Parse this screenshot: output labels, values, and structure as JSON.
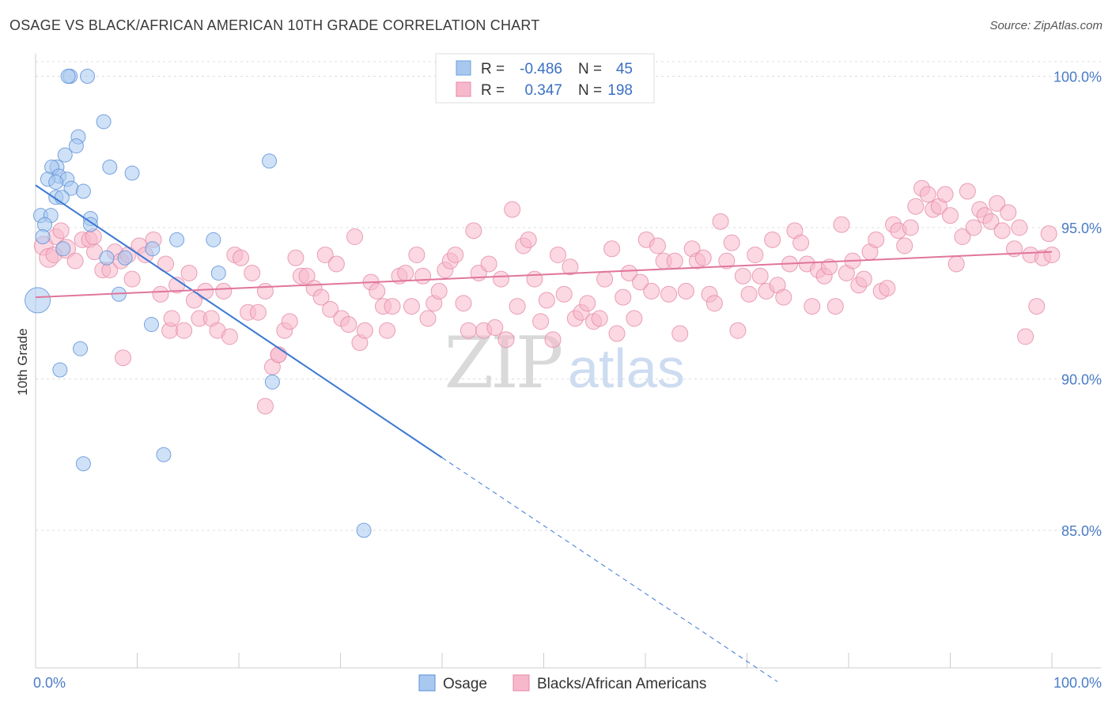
{
  "title": "OSAGE VS BLACK/AFRICAN AMERICAN 10TH GRADE CORRELATION CHART",
  "source": "Source: ZipAtlas.com",
  "watermark": {
    "zip": "ZIP",
    "atlas": "atlas"
  },
  "chart_data": {
    "type": "scatter",
    "xlabel": "",
    "ylabel": "10th Grade",
    "xlim": [
      0,
      100
    ],
    "ylim": [
      80,
      100.5
    ],
    "x_tick_labels": [
      "0.0%",
      "100.0%"
    ],
    "y_ticks": [
      {
        "value": 100,
        "label": "100.0%"
      },
      {
        "value": 95,
        "label": "95.0%"
      },
      {
        "value": 90,
        "label": "90.0%"
      },
      {
        "value": 85,
        "label": "85.0%"
      }
    ],
    "grid": true,
    "legend_placement": "top-center",
    "stats": [
      {
        "r_label": "R =",
        "r": "-0.486",
        "n_label": "N =",
        "n": "45",
        "color": "#a8c8f0",
        "stroke": "#6f9fd8"
      },
      {
        "r_label": "R =",
        "r": "0.347",
        "n_label": "N =",
        "n": "198",
        "color": "#f7b8cb",
        "stroke": "#e58aa8"
      }
    ],
    "series": [
      {
        "name": "Osage",
        "color": "#a8c8f0",
        "stroke": "#5a8fd6",
        "trend": {
          "x0": 0,
          "y0": 96.4,
          "x1": 40,
          "y1": 87.4,
          "dash_to_x": 73,
          "dash_to_y": 80
        },
        "points": [
          [
            3.4,
            100
          ],
          [
            3.2,
            100
          ],
          [
            5.1,
            100
          ],
          [
            6.7,
            98.5
          ],
          [
            4.2,
            98.0
          ],
          [
            4.0,
            97.7
          ],
          [
            2.9,
            97.4
          ],
          [
            2.1,
            97.0
          ],
          [
            1.6,
            97.0
          ],
          [
            7.3,
            97.0
          ],
          [
            9.5,
            96.8
          ],
          [
            2.3,
            96.7
          ],
          [
            1.2,
            96.6
          ],
          [
            3.1,
            96.6
          ],
          [
            2.0,
            96.5
          ],
          [
            3.5,
            96.3
          ],
          [
            4.7,
            96.2
          ],
          [
            2.0,
            96.0
          ],
          [
            2.6,
            96.0
          ],
          [
            0.5,
            95.4
          ],
          [
            1.5,
            95.4
          ],
          [
            5.4,
            95.3
          ],
          [
            0.9,
            95.1
          ],
          [
            5.4,
            95.1
          ],
          [
            23.0,
            97.2
          ],
          [
            0.7,
            94.7
          ],
          [
            2.7,
            94.3
          ],
          [
            13.9,
            94.6
          ],
          [
            17.5,
            94.6
          ],
          [
            11.5,
            94.3
          ],
          [
            7.0,
            94.0
          ],
          [
            8.8,
            94.0
          ],
          [
            18.0,
            93.5
          ],
          [
            0.2,
            92.6
          ],
          [
            8.2,
            92.8
          ],
          [
            11.4,
            91.8
          ],
          [
            4.4,
            91.0
          ],
          [
            2.4,
            90.3
          ],
          [
            23.3,
            89.9
          ],
          [
            12.6,
            87.5
          ],
          [
            4.7,
            87.2
          ],
          [
            32.3,
            85.0
          ]
        ],
        "sizes": [
          9,
          9,
          9,
          9,
          9,
          9,
          9,
          9,
          9,
          9,
          9,
          9,
          9,
          9,
          9,
          9,
          9,
          9,
          9,
          9,
          9,
          9,
          9,
          9,
          9,
          9,
          9,
          9,
          9,
          9,
          9,
          9,
          9,
          16,
          9,
          9,
          9,
          9,
          9,
          9,
          9,
          9
        ]
      },
      {
        "name": "Blacks/African Americans",
        "color": "#f7b8cb",
        "stroke": "#e58aa8",
        "trend": {
          "x0": 0,
          "y0": 92.7,
          "x1": 100,
          "y1": 94.2
        },
        "points": [
          [
            0.8,
            94.4
          ],
          [
            1.3,
            94.0
          ],
          [
            2.0,
            94.7
          ],
          [
            2.5,
            94.9
          ],
          [
            3.0,
            94.3
          ],
          [
            3.9,
            93.9
          ],
          [
            4.6,
            94.6
          ],
          [
            5.3,
            94.6
          ],
          [
            5.8,
            94.2
          ],
          [
            6.6,
            93.6
          ],
          [
            7.3,
            93.6
          ],
          [
            7.8,
            94.2
          ],
          [
            8.4,
            93.9
          ],
          [
            9.1,
            94.1
          ],
          [
            9.5,
            93.3
          ],
          [
            10.2,
            94.4
          ],
          [
            10.8,
            94.1
          ],
          [
            11.6,
            94.6
          ],
          [
            12.3,
            92.8
          ],
          [
            12.8,
            93.8
          ],
          [
            13.2,
            91.6
          ],
          [
            13.9,
            93.1
          ],
          [
            14.6,
            91.6
          ],
          [
            15.1,
            93.5
          ],
          [
            15.6,
            92.6
          ],
          [
            16.1,
            92.0
          ],
          [
            16.7,
            92.9
          ],
          [
            17.3,
            92.0
          ],
          [
            17.9,
            91.6
          ],
          [
            18.5,
            92.9
          ],
          [
            19.1,
            91.4
          ],
          [
            19.6,
            94.1
          ],
          [
            20.2,
            94.0
          ],
          [
            20.9,
            92.2
          ],
          [
            21.3,
            93.5
          ],
          [
            21.9,
            92.2
          ],
          [
            22.6,
            92.9
          ],
          [
            23.3,
            90.4
          ],
          [
            23.9,
            90.8
          ],
          [
            24.5,
            91.6
          ],
          [
            25.0,
            91.9
          ],
          [
            25.6,
            94.0
          ],
          [
            26.1,
            93.4
          ],
          [
            26.7,
            93.4
          ],
          [
            27.4,
            93.0
          ],
          [
            28.1,
            92.7
          ],
          [
            28.5,
            94.1
          ],
          [
            29.0,
            92.3
          ],
          [
            29.6,
            93.8
          ],
          [
            30.1,
            92.0
          ],
          [
            30.8,
            91.8
          ],
          [
            31.4,
            94.7
          ],
          [
            31.9,
            91.2
          ],
          [
            32.4,
            91.6
          ],
          [
            33.0,
            93.2
          ],
          [
            33.6,
            92.9
          ],
          [
            34.2,
            92.4
          ],
          [
            34.6,
            91.6
          ],
          [
            35.1,
            92.4
          ],
          [
            35.8,
            93.4
          ],
          [
            36.4,
            93.5
          ],
          [
            37.0,
            92.4
          ],
          [
            37.5,
            94.1
          ],
          [
            38.1,
            93.4
          ],
          [
            38.6,
            92.0
          ],
          [
            39.2,
            92.5
          ],
          [
            39.7,
            92.9
          ],
          [
            40.3,
            93.6
          ],
          [
            40.8,
            93.9
          ],
          [
            41.3,
            94.1
          ],
          [
            42.1,
            92.5
          ],
          [
            42.6,
            91.6
          ],
          [
            43.1,
            94.9
          ],
          [
            43.6,
            93.5
          ],
          [
            44.1,
            91.6
          ],
          [
            44.6,
            93.8
          ],
          [
            45.2,
            91.7
          ],
          [
            45.8,
            93.3
          ],
          [
            46.3,
            91.3
          ],
          [
            46.9,
            95.6
          ],
          [
            47.4,
            92.4
          ],
          [
            48.0,
            94.4
          ],
          [
            48.5,
            94.6
          ],
          [
            49.1,
            93.3
          ],
          [
            49.7,
            91.9
          ],
          [
            50.3,
            92.6
          ],
          [
            50.9,
            91.3
          ],
          [
            51.4,
            94.1
          ],
          [
            52.0,
            92.8
          ],
          [
            52.6,
            93.7
          ],
          [
            53.1,
            92.0
          ],
          [
            53.7,
            92.2
          ],
          [
            54.3,
            92.5
          ],
          [
            54.9,
            91.9
          ],
          [
            55.5,
            92.0
          ],
          [
            56.0,
            93.3
          ],
          [
            56.7,
            94.3
          ],
          [
            57.2,
            91.5
          ],
          [
            57.8,
            92.7
          ],
          [
            58.4,
            93.5
          ],
          [
            58.9,
            92.0
          ],
          [
            59.5,
            93.2
          ],
          [
            60.1,
            94.6
          ],
          [
            60.6,
            92.9
          ],
          [
            61.2,
            94.4
          ],
          [
            61.8,
            93.9
          ],
          [
            62.3,
            92.8
          ],
          [
            62.9,
            93.9
          ],
          [
            63.4,
            91.5
          ],
          [
            64.0,
            92.9
          ],
          [
            64.6,
            94.3
          ],
          [
            65.1,
            93.9
          ],
          [
            65.7,
            94.0
          ],
          [
            66.3,
            92.8
          ],
          [
            66.8,
            92.5
          ],
          [
            67.4,
            95.2
          ],
          [
            68.0,
            93.9
          ],
          [
            68.5,
            94.5
          ],
          [
            69.1,
            91.6
          ],
          [
            69.6,
            93.4
          ],
          [
            70.2,
            92.8
          ],
          [
            70.8,
            94.1
          ],
          [
            71.3,
            93.4
          ],
          [
            71.9,
            92.9
          ],
          [
            72.5,
            94.6
          ],
          [
            73.0,
            93.1
          ],
          [
            73.6,
            92.7
          ],
          [
            74.2,
            93.8
          ],
          [
            74.7,
            94.9
          ],
          [
            75.3,
            94.5
          ],
          [
            75.9,
            93.8
          ],
          [
            76.4,
            92.4
          ],
          [
            77.0,
            93.6
          ],
          [
            77.6,
            93.4
          ],
          [
            78.1,
            93.7
          ],
          [
            78.7,
            92.4
          ],
          [
            79.3,
            95.1
          ],
          [
            79.8,
            93.5
          ],
          [
            80.4,
            93.9
          ],
          [
            81.0,
            93.1
          ],
          [
            81.5,
            93.3
          ],
          [
            82.1,
            94.2
          ],
          [
            82.7,
            94.6
          ],
          [
            83.2,
            92.9
          ],
          [
            83.8,
            93.0
          ],
          [
            84.4,
            95.1
          ],
          [
            84.9,
            94.9
          ],
          [
            85.5,
            94.4
          ],
          [
            86.1,
            95.0
          ],
          [
            86.6,
            95.7
          ],
          [
            87.2,
            96.3
          ],
          [
            87.8,
            96.1
          ],
          [
            88.3,
            95.6
          ],
          [
            88.9,
            95.7
          ],
          [
            89.5,
            96.1
          ],
          [
            90.0,
            95.4
          ],
          [
            90.6,
            93.8
          ],
          [
            91.2,
            94.7
          ],
          [
            91.7,
            96.2
          ],
          [
            92.3,
            95.0
          ],
          [
            92.9,
            95.6
          ],
          [
            93.4,
            95.4
          ],
          [
            94.0,
            95.2
          ],
          [
            94.6,
            95.8
          ],
          [
            95.1,
            94.9
          ],
          [
            95.7,
            95.5
          ],
          [
            96.3,
            94.3
          ],
          [
            96.8,
            95.0
          ],
          [
            97.4,
            91.4
          ],
          [
            97.9,
            94.1
          ],
          [
            98.5,
            92.4
          ],
          [
            99.1,
            94.0
          ],
          [
            99.7,
            94.8
          ],
          [
            100.0,
            94.1
          ],
          [
            8.6,
            90.7
          ],
          [
            22.6,
            89.1
          ],
          [
            5.7,
            94.7
          ],
          [
            1.8,
            94.1
          ],
          [
            13.4,
            92.0
          ],
          [
            23.9,
            90.8
          ]
        ],
        "sizes": [
          12,
          12,
          10,
          10,
          12,
          10,
          10,
          10,
          10,
          10,
          10,
          10,
          10,
          10,
          10,
          10,
          10,
          10,
          10,
          10,
          10,
          10,
          10,
          10,
          10,
          10,
          10,
          10,
          10,
          10,
          10,
          10,
          10,
          10,
          10,
          10,
          10,
          10,
          10,
          10,
          10,
          10,
          10,
          10,
          10,
          10,
          10,
          10,
          10,
          10,
          10,
          10,
          10,
          10,
          10,
          10,
          10,
          10,
          10,
          10,
          10,
          10,
          10,
          10,
          10,
          10,
          10,
          10,
          10,
          10,
          10,
          10,
          10,
          10,
          10,
          10,
          10,
          10,
          10,
          10,
          10,
          10,
          10,
          10,
          10,
          10,
          10,
          10,
          10,
          10,
          10,
          10,
          10,
          10,
          10,
          10,
          10,
          10,
          10,
          10,
          10,
          10,
          10,
          10,
          10,
          10,
          10,
          10,
          10,
          10,
          10,
          10,
          10,
          10,
          10,
          10,
          10,
          10,
          10,
          10,
          10,
          10,
          10,
          10,
          10,
          10,
          10,
          10,
          10,
          10,
          10,
          10,
          10,
          10,
          10,
          10,
          10,
          10,
          10,
          10,
          10,
          10,
          10,
          10,
          10,
          10,
          10,
          10,
          10,
          10,
          10,
          10,
          10,
          10,
          10,
          10,
          10,
          10,
          10,
          10,
          10,
          10,
          10,
          10,
          10,
          10,
          10,
          10,
          10,
          10,
          10,
          10,
          10,
          10,
          10,
          10,
          10,
          10,
          10,
          10,
          11,
          10,
          10,
          10,
          10,
          10,
          10
        ]
      }
    ]
  }
}
